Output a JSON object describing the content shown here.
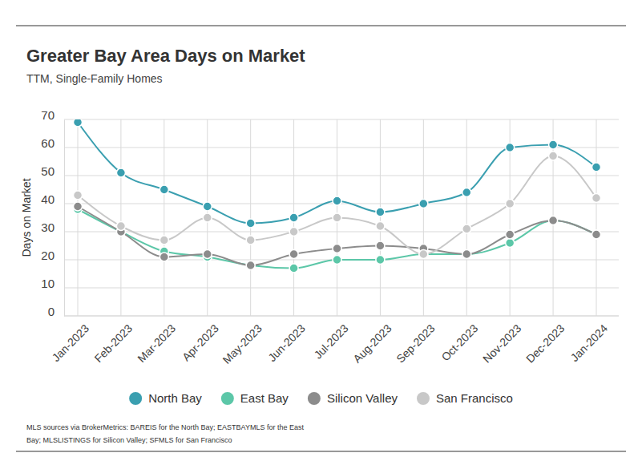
{
  "chart_data": {
    "type": "line",
    "title": "Greater Bay Area Days on Market",
    "subtitle": "TTM, Single-Family Homes",
    "y_label": "Days on Market",
    "categories": [
      "Jan-2023",
      "Feb-2023",
      "Mar-2023",
      "Apr-2023",
      "May-2023",
      "Jun-2023",
      "Jul-2023",
      "Aug-2023",
      "Sep-2023",
      "Oct-2023",
      "Nov-2023",
      "Dec-2023",
      "Jan-2024"
    ],
    "series": [
      {
        "name": "North Bay",
        "color": "#3a9fb0",
        "values": [
          69,
          51,
          45,
          39,
          33,
          35,
          41,
          37,
          40,
          44,
          60,
          61,
          53
        ]
      },
      {
        "name": "East Bay",
        "color": "#5cc7a8",
        "values": [
          38,
          30,
          23,
          21,
          18,
          17,
          20,
          20,
          22,
          22,
          26,
          34,
          29
        ]
      },
      {
        "name": "Silicon Valley",
        "color": "#8c8c8c",
        "values": [
          39,
          30,
          21,
          22,
          18,
          22,
          24,
          25,
          24,
          22,
          29,
          34,
          29
        ]
      },
      {
        "name": "San Francisco",
        "color": "#c8c8c8",
        "values": [
          43,
          32,
          27,
          35,
          27,
          30,
          35,
          32,
          22,
          31,
          40,
          57,
          42
        ]
      }
    ],
    "ylim": [
      0,
      70
    ],
    "yticks": [
      0,
      10,
      20,
      30,
      40,
      50,
      60,
      70
    ],
    "grid": true,
    "legend": "bottom",
    "marker": "circle",
    "line_style": "solid",
    "source": [
      "MLS sources via BrokerMetrics: BAREIS for the North Bay; EASTBAYMLS for the East",
      "Bay; MLSLISTINGS for Silicon Valley; SFMLS for San Francisco"
    ]
  }
}
